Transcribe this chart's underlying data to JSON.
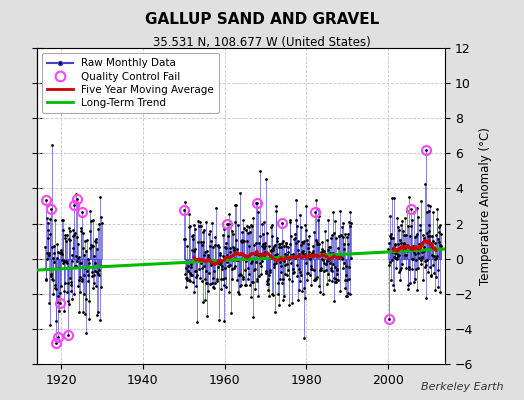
{
  "title": "GALLUP SAND AND GRAVEL",
  "subtitle": "35.531 N, 108.677 W (United States)",
  "ylabel": "Temperature Anomaly (°C)",
  "credit": "Berkeley Earth",
  "xlim": [
    1914,
    2014
  ],
  "ylim": [
    -6,
    12
  ],
  "yticks": [
    -6,
    -4,
    -2,
    0,
    2,
    4,
    6,
    8,
    10,
    12
  ],
  "xticks": [
    1920,
    1940,
    1960,
    1980,
    2000
  ],
  "bg_color": "#e0e0e0",
  "plot_bg_color": "#ffffff",
  "raw_line_color": "#4444cc",
  "raw_dot_color": "#000000",
  "qc_fail_color": "#ff44ff",
  "moving_avg_color": "#cc0000",
  "trend_color": "#00bb00",
  "seed": 12345,
  "seg1_start": 1916,
  "seg1_end": 1929,
  "seg1_base": -0.2,
  "seg1_spread": 1.8,
  "seg2_start": 1950,
  "seg2_end": 1990,
  "seg2_base": 0.1,
  "seg2_spread": 1.4,
  "seg3_start": 2000,
  "seg3_end": 2012,
  "seg3_base": 0.6,
  "seg3_spread": 1.4,
  "trend_x0": 1914,
  "trend_x1": 2014,
  "trend_y0": -0.65,
  "trend_y1": 0.55,
  "ma_window": 60
}
